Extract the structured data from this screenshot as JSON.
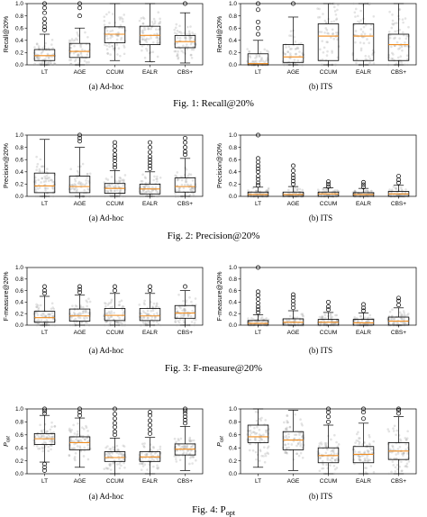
{
  "figures": [
    {
      "caption": "Fig. 1: Recall@20%",
      "panels": [
        {
          "caption": "(a)  Ad-hoc",
          "chart_data": {
            "type": "box",
            "ylabel": "Recall@20%",
            "ylim": [
              0,
              1.0
            ],
            "yticks": [
              "0.0",
              "0.2",
              "0.4",
              "0.6",
              "0.8",
              "1.0"
            ],
            "categories": [
              "LT",
              "AGE",
              "CCUM",
              "EALR",
              "CBS+"
            ],
            "boxes": [
              {
                "q1": 0.07,
                "median": 0.15,
                "q3": 0.25,
                "wlo": 0.0,
                "whi": 0.5,
                "outliers": [
                  0.57,
                  0.62,
                  0.68,
                  0.75,
                  0.85,
                  0.93,
                  1.0
                ]
              },
              {
                "q1": 0.12,
                "median": 0.22,
                "q3": 0.35,
                "wlo": 0.0,
                "whi": 0.6,
                "outliers": [
                  0.8,
                  0.93,
                  1.0
                ]
              },
              {
                "q1": 0.36,
                "median": 0.5,
                "q3": 0.62,
                "wlo": 0.07,
                "whi": 1.0,
                "outliers": []
              },
              {
                "q1": 0.33,
                "median": 0.48,
                "q3": 0.63,
                "wlo": 0.05,
                "whi": 1.0,
                "outliers": []
              },
              {
                "q1": 0.28,
                "median": 0.38,
                "q3": 0.48,
                "wlo": 0.03,
                "whi": 0.85,
                "outliers": [
                  1.0
                ]
              }
            ]
          }
        },
        {
          "caption": "(b)  ITS",
          "chart_data": {
            "type": "box",
            "ylabel": "Recall@20%",
            "ylim": [
              0,
              1.0
            ],
            "yticks": [
              "0.0",
              "0.2",
              "0.4",
              "0.6",
              "0.8",
              "1.0"
            ],
            "categories": [
              "LT",
              "AGE",
              "CCUM",
              "EALR",
              "CBS+"
            ],
            "boxes": [
              {
                "q1": 0.0,
                "median": 0.02,
                "q3": 0.18,
                "wlo": 0.0,
                "whi": 0.4,
                "outliers": [
                  0.5,
                  0.6,
                  0.7,
                  0.9,
                  1.0
                ]
              },
              {
                "q1": 0.04,
                "median": 0.13,
                "q3": 0.33,
                "wlo": 0.0,
                "whi": 0.78,
                "outliers": [
                  1.0
                ]
              },
              {
                "q1": 0.07,
                "median": 0.47,
                "q3": 0.67,
                "wlo": 0.0,
                "whi": 1.0,
                "outliers": []
              },
              {
                "q1": 0.07,
                "median": 0.47,
                "q3": 0.67,
                "wlo": 0.0,
                "whi": 1.0,
                "outliers": []
              },
              {
                "q1": 0.07,
                "median": 0.33,
                "q3": 0.5,
                "wlo": 0.0,
                "whi": 1.0,
                "outliers": []
              }
            ]
          }
        }
      ]
    },
    {
      "caption": "Fig. 2: Precision@20%",
      "panels": [
        {
          "caption": "(a)  Ad-hoc",
          "chart_data": {
            "type": "box",
            "ylabel": "Precision@20%",
            "ylim": [
              0,
              1.0
            ],
            "yticks": [
              "0.0",
              "0.2",
              "0.4",
              "0.6",
              "0.8",
              "1.0"
            ],
            "categories": [
              "LT",
              "AGE",
              "CCUM",
              "EALR",
              "CBS+"
            ],
            "boxes": [
              {
                "q1": 0.06,
                "median": 0.17,
                "q3": 0.38,
                "wlo": 0.0,
                "whi": 0.93,
                "outliers": []
              },
              {
                "q1": 0.06,
                "median": 0.16,
                "q3": 0.33,
                "wlo": 0.0,
                "whi": 0.8,
                "outliers": [
                  0.9,
                  0.95,
                  1.0
                ]
              },
              {
                "q1": 0.05,
                "median": 0.13,
                "q3": 0.21,
                "wlo": 0.0,
                "whi": 0.42,
                "outliers": [
                  0.47,
                  0.52,
                  0.58,
                  0.63,
                  0.68,
                  0.75,
                  0.82,
                  0.88
                ]
              },
              {
                "q1": 0.04,
                "median": 0.12,
                "q3": 0.2,
                "wlo": 0.0,
                "whi": 0.4,
                "outliers": [
                  0.45,
                  0.5,
                  0.55,
                  0.6,
                  0.65,
                  0.72,
                  0.8,
                  0.88
                ]
              },
              {
                "q1": 0.07,
                "median": 0.16,
                "q3": 0.3,
                "wlo": 0.0,
                "whi": 0.62,
                "outliers": [
                  0.68,
                  0.73,
                  0.8,
                  0.88,
                  0.95
                ]
              }
            ]
          }
        },
        {
          "caption": "(b)  ITS",
          "chart_data": {
            "type": "box",
            "ylabel": "Precision@20%",
            "ylim": [
              0,
              1.0
            ],
            "yticks": [
              "0.0",
              "0.2",
              "0.4",
              "0.6",
              "0.8",
              "1.0"
            ],
            "categories": [
              "LT",
              "AGE",
              "CCUM",
              "EALR",
              "CBS+"
            ],
            "boxes": [
              {
                "q1": 0.0,
                "median": 0.03,
                "q3": 0.07,
                "wlo": 0.0,
                "whi": 0.15,
                "outliers": [
                  0.18,
                  0.22,
                  0.28,
                  0.33,
                  0.4,
                  0.45,
                  0.5,
                  0.56,
                  0.62,
                  1.0
                ]
              },
              {
                "q1": 0.0,
                "median": 0.03,
                "q3": 0.07,
                "wlo": 0.0,
                "whi": 0.16,
                "outliers": [
                  0.2,
                  0.25,
                  0.3,
                  0.35,
                  0.42,
                  0.5
                ]
              },
              {
                "q1": 0.0,
                "median": 0.04,
                "q3": 0.07,
                "wlo": 0.0,
                "whi": 0.14,
                "outliers": [
                  0.16,
                  0.2,
                  0.24
                ]
              },
              {
                "q1": 0.0,
                "median": 0.03,
                "q3": 0.06,
                "wlo": 0.0,
                "whi": 0.13,
                "outliers": [
                  0.15,
                  0.19,
                  0.23
                ]
              },
              {
                "q1": 0.0,
                "median": 0.04,
                "q3": 0.08,
                "wlo": 0.0,
                "whi": 0.18,
                "outliers": [
                  0.22,
                  0.27,
                  0.33
                ]
              }
            ]
          }
        }
      ]
    },
    {
      "caption": "Fig. 3: F-measure@20%",
      "panels": [
        {
          "caption": "(a)  Ad-hoc",
          "chart_data": {
            "type": "box",
            "ylabel": "F-measure@20%",
            "ylim": [
              0,
              1.0
            ],
            "yticks": [
              "0.0",
              "0.2",
              "0.4",
              "0.6",
              "0.8",
              "1.0"
            ],
            "categories": [
              "LT",
              "AGE",
              "CCUM",
              "EALR",
              "CBS+"
            ],
            "boxes": [
              {
                "q1": 0.05,
                "median": 0.13,
                "q3": 0.24,
                "wlo": 0.0,
                "whi": 0.5,
                "outliers": [
                  0.55,
                  0.6,
                  0.67
                ]
              },
              {
                "q1": 0.07,
                "median": 0.16,
                "q3": 0.28,
                "wlo": 0.0,
                "whi": 0.52,
                "outliers": [
                  0.57,
                  0.62,
                  0.67
                ]
              },
              {
                "q1": 0.08,
                "median": 0.17,
                "q3": 0.29,
                "wlo": 0.0,
                "whi": 0.55,
                "outliers": [
                  0.6,
                  0.67
                ]
              },
              {
                "q1": 0.08,
                "median": 0.16,
                "q3": 0.29,
                "wlo": 0.0,
                "whi": 0.55,
                "outliers": [
                  0.6,
                  0.67
                ]
              },
              {
                "q1": 0.12,
                "median": 0.21,
                "q3": 0.34,
                "wlo": 0.0,
                "whi": 0.6,
                "outliers": [
                  0.67
                ]
              }
            ]
          }
        },
        {
          "caption": "(b)  ITS",
          "chart_data": {
            "type": "box",
            "ylabel": "F-measure@20%",
            "ylim": [
              0,
              1.0
            ],
            "yticks": [
              "0.0",
              "0.2",
              "0.4",
              "0.6",
              "0.8",
              "1.0"
            ],
            "categories": [
              "LT",
              "AGE",
              "CCUM",
              "EALR",
              "CBS+"
            ],
            "boxes": [
              {
                "q1": 0.0,
                "median": 0.03,
                "q3": 0.08,
                "wlo": 0.0,
                "whi": 0.18,
                "outliers": [
                  0.22,
                  0.27,
                  0.32,
                  0.38,
                  0.45,
                  0.52,
                  0.58,
                  1.0
                ]
              },
              {
                "q1": 0.0,
                "median": 0.05,
                "q3": 0.11,
                "wlo": 0.0,
                "whi": 0.25,
                "outliers": [
                  0.3,
                  0.36,
                  0.42,
                  0.48,
                  0.53
                ]
              },
              {
                "q1": 0.0,
                "median": 0.05,
                "q3": 0.1,
                "wlo": 0.0,
                "whi": 0.22,
                "outliers": [
                  0.27,
                  0.32,
                  0.4
                ]
              },
              {
                "q1": 0.0,
                "median": 0.04,
                "q3": 0.1,
                "wlo": 0.0,
                "whi": 0.21,
                "outliers": [
                  0.25,
                  0.3,
                  0.36
                ]
              },
              {
                "q1": 0.0,
                "median": 0.07,
                "q3": 0.14,
                "wlo": 0.0,
                "whi": 0.3,
                "outliers": [
                  0.35,
                  0.42,
                  0.47
                ]
              }
            ]
          }
        }
      ]
    },
    {
      "caption": "Fig. 4: P",
      "caption_sub": "opt",
      "panels": [
        {
          "caption": "(a)  Ad-hoc",
          "chart_data": {
            "type": "box",
            "ylabel": "P",
            "ylabel_sub": "opt",
            "ylim": [
              0,
              1.0
            ],
            "yticks": [
              "0.0",
              "0.2",
              "0.4",
              "0.6",
              "0.8",
              "1.0"
            ],
            "categories": [
              "LT",
              "AGE",
              "CCUM",
              "EALR",
              "CBS+"
            ],
            "boxes": [
              {
                "q1": 0.45,
                "median": 0.54,
                "q3": 0.62,
                "wlo": 0.18,
                "whi": 0.9,
                "outliers": [
                  0.05,
                  0.1,
                  0.15,
                  0.93,
                  0.97,
                  1.0
                ]
              },
              {
                "q1": 0.37,
                "median": 0.48,
                "q3": 0.57,
                "wlo": 0.1,
                "whi": 0.86,
                "outliers": [
                  0.9,
                  0.95,
                  1.0
                ]
              },
              {
                "q1": 0.19,
                "median": 0.25,
                "q3": 0.34,
                "wlo": 0.0,
                "whi": 0.55,
                "outliers": [
                  0.6,
                  0.65,
                  0.72,
                  0.78,
                  0.85,
                  0.92,
                  1.0
                ]
              },
              {
                "q1": 0.19,
                "median": 0.26,
                "q3": 0.34,
                "wlo": 0.0,
                "whi": 0.56,
                "outliers": [
                  0.62,
                  0.68,
                  0.75,
                  0.82,
                  0.9,
                  0.95
                ]
              },
              {
                "q1": 0.29,
                "median": 0.38,
                "q3": 0.46,
                "wlo": 0.05,
                "whi": 0.73,
                "outliers": [
                  0.78,
                  0.83,
                  0.88,
                  0.93,
                  0.97,
                  1.0
                ]
              }
            ]
          }
        },
        {
          "caption": "(b)  ITS",
          "chart_data": {
            "type": "box",
            "ylabel": "P",
            "ylabel_sub": "opt",
            "ylim": [
              0,
              1.0
            ],
            "yticks": [
              "0.0",
              "0.2",
              "0.4",
              "0.6",
              "0.8",
              "1.0"
            ],
            "categories": [
              "LT",
              "AGE",
              "CCUM",
              "EALR",
              "CBS+"
            ],
            "boxes": [
              {
                "q1": 0.48,
                "median": 0.57,
                "q3": 0.75,
                "wlo": 0.1,
                "whi": 1.0,
                "outliers": []
              },
              {
                "q1": 0.37,
                "median": 0.52,
                "q3": 0.65,
                "wlo": 0.05,
                "whi": 0.98,
                "outliers": []
              },
              {
                "q1": 0.17,
                "median": 0.28,
                "q3": 0.4,
                "wlo": 0.0,
                "whi": 0.75,
                "outliers": [
                  0.8,
                  0.88,
                  0.95,
                  1.0
                ]
              },
              {
                "q1": 0.17,
                "median": 0.3,
                "q3": 0.42,
                "wlo": 0.0,
                "whi": 0.78,
                "outliers": [
                  0.85,
                  0.95,
                  1.0
                ]
              },
              {
                "q1": 0.22,
                "median": 0.35,
                "q3": 0.48,
                "wlo": 0.0,
                "whi": 0.88,
                "outliers": [
                  0.93,
                  0.98,
                  1.0
                ]
              }
            ]
          }
        }
      ]
    }
  ]
}
